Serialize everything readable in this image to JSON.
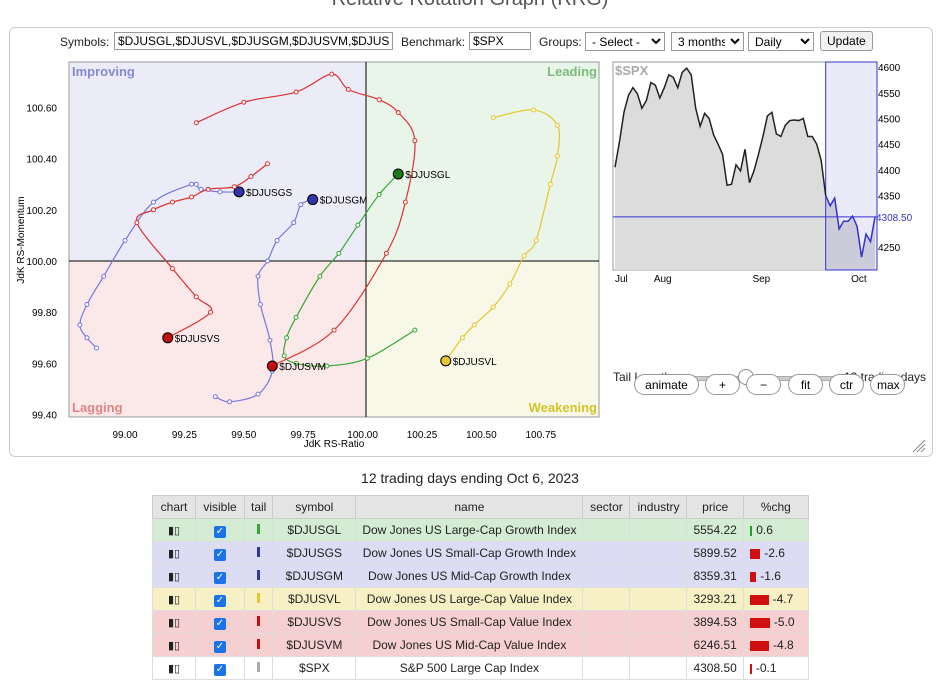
{
  "page": {
    "title": "Relative Rotation Graph (RRG)"
  },
  "controls": {
    "symbols_label": "Symbols:",
    "symbols_value": "$DJUSGL,$DJUSVL,$DJUSGM,$DJUSVM,$DJUSGS,$DJUSVS",
    "benchmark_label": "Benchmark:",
    "benchmark_value": "$SPX",
    "groups_label": "Groups:",
    "groups_value": "- Select -",
    "period_value": "3 months",
    "frequency_value": "Daily",
    "update_label": "Update"
  },
  "rrg": {
    "quadrants": {
      "improving": "Improving",
      "leading": "Leading",
      "lagging": "Lagging",
      "weakening": "Weakening"
    },
    "x_axis_label": "JdK RS-Ratio",
    "y_axis_label": "JdK RS-Momentum",
    "x_ticks": [
      "99.00",
      "99.25",
      "99.50",
      "99.75",
      "100.00",
      "100.25",
      "100.50",
      "100.75"
    ],
    "y_ticks": [
      "100.60",
      "100.40",
      "100.20",
      "100.00",
      "99.80",
      "99.60",
      "99.40"
    ],
    "colors": {
      "improving": "#ececf8",
      "leading": "#eaf5ea",
      "lagging": "#fbe9e9",
      "weakening": "#f8f8e8",
      "improving_text": "#8888d0",
      "leading_text": "#7dbb7d",
      "lagging_text": "#e08585",
      "weakening_text": "#d4c42a"
    },
    "series": [
      {
        "symbol": "$DJUSGL",
        "color": "#35a835",
        "head_color": "#1a7a1a",
        "points": [
          [
            100.22,
            99.73
          ],
          [
            100.02,
            99.62
          ],
          [
            99.85,
            99.59
          ],
          [
            99.72,
            99.6
          ],
          [
            99.67,
            99.63
          ],
          [
            99.68,
            99.7
          ],
          [
            99.72,
            99.78
          ],
          [
            99.82,
            99.94
          ],
          [
            99.9,
            100.03
          ],
          [
            99.98,
            100.14
          ],
          [
            100.07,
            100.26
          ],
          [
            100.15,
            100.34
          ]
        ]
      },
      {
        "symbol": "$DJUSGS",
        "color": "#7777dd",
        "head_color": "#3333aa",
        "points": [
          [
            98.88,
            99.66
          ],
          [
            98.84,
            99.7
          ],
          [
            98.81,
            99.75
          ],
          [
            98.84,
            99.83
          ],
          [
            98.91,
            99.94
          ],
          [
            99.0,
            100.08
          ],
          [
            99.12,
            100.23
          ],
          [
            99.28,
            100.3
          ],
          [
            99.3,
            100.3
          ],
          [
            99.32,
            100.28
          ],
          [
            99.4,
            100.27
          ],
          [
            99.48,
            100.27
          ]
        ]
      },
      {
        "symbol": "$DJUSGM",
        "color": "#7777dd",
        "head_color": "#3333aa",
        "points": [
          [
            99.38,
            99.47
          ],
          [
            99.44,
            99.45
          ],
          [
            99.56,
            99.48
          ],
          [
            99.62,
            99.57
          ],
          [
            99.61,
            99.69
          ],
          [
            99.57,
            99.83
          ],
          [
            99.56,
            99.94
          ],
          [
            99.6,
            100.0
          ],
          [
            99.64,
            100.08
          ],
          [
            99.71,
            100.15
          ],
          [
            99.74,
            100.22
          ],
          [
            99.79,
            100.24
          ]
        ]
      },
      {
        "symbol": "$DJUSVL",
        "color": "#e5c62c",
        "head_color": "#e5c62c",
        "points": [
          [
            100.55,
            100.56
          ],
          [
            100.72,
            100.59
          ],
          [
            100.82,
            100.53
          ],
          [
            100.82,
            100.41
          ],
          [
            100.79,
            100.3
          ],
          [
            100.73,
            100.08
          ],
          [
            100.68,
            100.02
          ],
          [
            100.62,
            99.91
          ],
          [
            100.55,
            99.82
          ],
          [
            100.47,
            99.75
          ],
          [
            100.42,
            99.7
          ],
          [
            100.35,
            99.61
          ]
        ]
      },
      {
        "symbol": "$DJUSVS",
        "color": "#e03030",
        "head_color": "#c01010",
        "points": [
          [
            99.6,
            100.38
          ],
          [
            99.53,
            100.33
          ],
          [
            99.46,
            100.29
          ],
          [
            99.35,
            100.28
          ],
          [
            99.28,
            100.25
          ],
          [
            99.2,
            100.23
          ],
          [
            99.12,
            100.2
          ],
          [
            99.05,
            100.15
          ],
          [
            99.2,
            99.97
          ],
          [
            99.3,
            99.86
          ],
          [
            99.36,
            99.8
          ],
          [
            99.18,
            99.7
          ]
        ]
      },
      {
        "symbol": "$DJUSVM",
        "color": "#e03030",
        "head_color": "#c01010",
        "points": [
          [
            99.3,
            100.54
          ],
          [
            99.5,
            100.62
          ],
          [
            99.72,
            100.66
          ],
          [
            99.87,
            100.73
          ],
          [
            99.94,
            100.67
          ],
          [
            100.07,
            100.63
          ],
          [
            100.15,
            100.58
          ],
          [
            100.22,
            100.47
          ],
          [
            100.18,
            100.23
          ],
          [
            100.1,
            100.03
          ],
          [
            99.88,
            99.73
          ],
          [
            99.62,
            99.59
          ]
        ]
      }
    ]
  },
  "mini_chart": {
    "title": "$SPX",
    "current_value": "4308.50",
    "y_ticks": [
      "4600",
      "4550",
      "4500",
      "4450",
      "4400",
      "4350",
      "4300",
      "4250"
    ],
    "x_ticks": [
      "Jul",
      "Aug",
      "Sep",
      "Oct"
    ],
    "line_color": "#222222",
    "highlight_color": "#3333cc",
    "prices": [
      4405,
      4455,
      4512,
      4545,
      4560,
      4548,
      4520,
      4535,
      4570,
      4565,
      4540,
      4560,
      4585,
      4580,
      4560,
      4590,
      4598,
      4585,
      4520,
      4485,
      4510,
      4500,
      4468,
      4450,
      4430,
      4370,
      4372,
      4410,
      4398,
      4440,
      4375,
      4398,
      4430,
      4465,
      4505,
      4512,
      4470,
      4465,
      4487,
      4496,
      4497,
      4496,
      4500,
      4465,
      4465,
      4450,
      4418,
      4350,
      4330,
      4345,
      4285,
      4300,
      4300,
      4310,
      4290,
      4230,
      4275,
      4260,
      4308
    ]
  },
  "tail": {
    "label": "Tail Length:",
    "value": "12 trading days",
    "slider_fraction": 0.39
  },
  "buttons": {
    "animate": "animate",
    "plus": "+",
    "minus": "−",
    "fit": "fit",
    "ctr": "ctr",
    "max": "max"
  },
  "caption": "12 trading days ending Oct 6, 2023",
  "table": {
    "headers": [
      "chart",
      "visible",
      "tail",
      "symbol",
      "name",
      "sector",
      "industry",
      "price",
      "%chg"
    ],
    "rows": [
      {
        "symbol": "$DJUSGL",
        "name": "Dow Jones US Large-Cap Growth Index",
        "sector": "",
        "industry": "",
        "price": "5554.22",
        "chg": "0.6",
        "chg_value": 0.6,
        "bg": "#d4ecd4",
        "tail_color": "#35a835"
      },
      {
        "symbol": "$DJUSGS",
        "name": "Dow Jones US Small-Cap Growth Index",
        "sector": "",
        "industry": "",
        "price": "5899.52",
        "chg": "-2.6",
        "chg_value": -2.6,
        "bg": "#dcdcf4",
        "tail_color": "#3333aa"
      },
      {
        "symbol": "$DJUSGM",
        "name": "Dow Jones US Mid-Cap Growth Index",
        "sector": "",
        "industry": "",
        "price": "8359.31",
        "chg": "-1.6",
        "chg_value": -1.6,
        "bg": "#dcdcf4",
        "tail_color": "#3333aa"
      },
      {
        "symbol": "$DJUSVL",
        "name": "Dow Jones US Large-Cap Value Index",
        "sector": "",
        "industry": "",
        "price": "3293.21",
        "chg": "-4.7",
        "chg_value": -4.7,
        "bg": "#f6f0c4",
        "tail_color": "#e5c62c"
      },
      {
        "symbol": "$DJUSVS",
        "name": "Dow Jones US Small-Cap Value Index",
        "sector": "",
        "industry": "",
        "price": "3894.53",
        "chg": "-5.0",
        "chg_value": -5.0,
        "bg": "#f6d0d0",
        "tail_color": "#c01010"
      },
      {
        "symbol": "$DJUSVM",
        "name": "Dow Jones US Mid-Cap Value Index",
        "sector": "",
        "industry": "",
        "price": "6246.51",
        "chg": "-4.8",
        "chg_value": -4.8,
        "bg": "#f6d0d0",
        "tail_color": "#c01010"
      },
      {
        "symbol": "$SPX",
        "name": "S&P 500 Large Cap Index",
        "sector": "",
        "industry": "",
        "price": "4308.50",
        "chg": "-0.1",
        "chg_value": -0.1,
        "bg": "#ffffff",
        "tail_color": "#aaaaaa"
      }
    ]
  }
}
